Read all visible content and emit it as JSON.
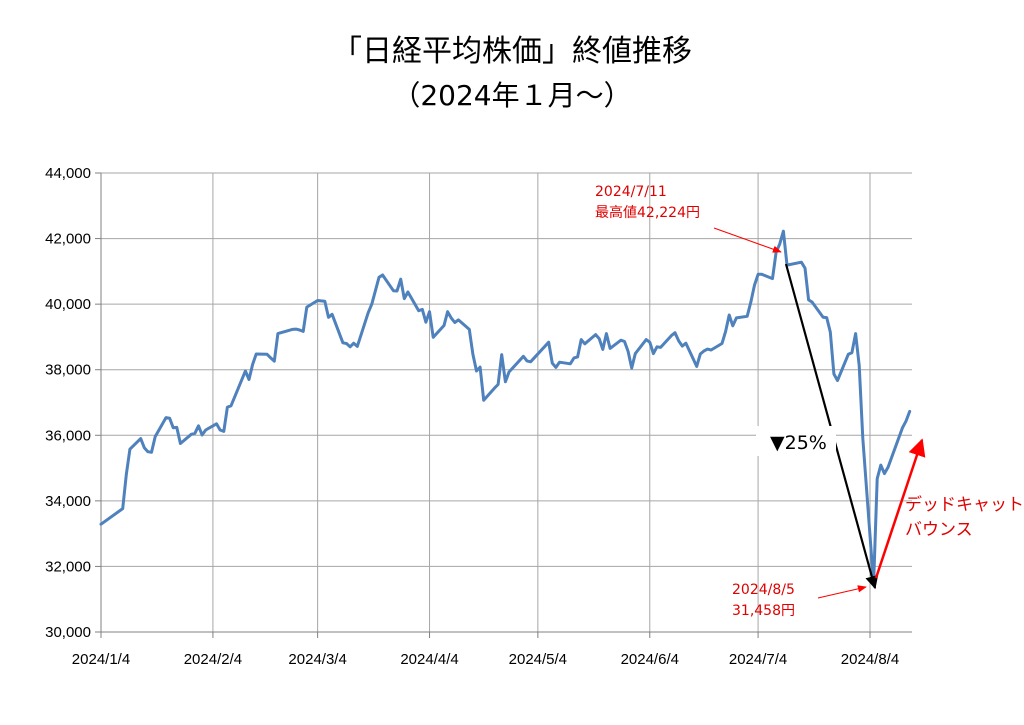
{
  "chart_data": {
    "type": "line",
    "title": "「日経平均株価」終値推移",
    "subtitle": "（2024年１月～）",
    "ylim": [
      30000,
      44000
    ],
    "yticks": [
      "30,000",
      "32,000",
      "34,000",
      "36,000",
      "38,000",
      "40,000",
      "42,000",
      "44,000"
    ],
    "xticks": [
      "2024/1/4",
      "2024/2/4",
      "2024/3/4",
      "2024/4/4",
      "2024/5/4",
      "2024/6/4",
      "2024/7/4",
      "2024/8/4"
    ],
    "grid": true,
    "series": [
      {
        "color": "#4f81bd",
        "points": [
          [
            "2024-01-04",
            33288
          ],
          [
            "2024-01-10",
            33763
          ],
          [
            "2024-01-11",
            34800
          ],
          [
            "2024-01-12",
            35577
          ],
          [
            "2024-01-15",
            35900
          ],
          [
            "2024-01-16",
            35620
          ],
          [
            "2024-01-17",
            35500
          ],
          [
            "2024-01-18",
            35480
          ],
          [
            "2024-01-19",
            35960
          ],
          [
            "2024-01-22",
            36540
          ],
          [
            "2024-01-23",
            36520
          ],
          [
            "2024-01-24",
            36230
          ],
          [
            "2024-01-25",
            36240
          ],
          [
            "2024-01-26",
            35750
          ],
          [
            "2024-01-29",
            36030
          ],
          [
            "2024-01-30",
            36060
          ],
          [
            "2024-01-31",
            36290
          ],
          [
            "2024-02-01",
            36010
          ],
          [
            "2024-02-02",
            36160
          ],
          [
            "2024-02-05",
            36350
          ],
          [
            "2024-02-06",
            36160
          ],
          [
            "2024-02-07",
            36120
          ],
          [
            "2024-02-08",
            36860
          ],
          [
            "2024-02-09",
            36900
          ],
          [
            "2024-02-13",
            37960
          ],
          [
            "2024-02-14",
            37700
          ],
          [
            "2024-02-15",
            38160
          ],
          [
            "2024-02-16",
            38480
          ],
          [
            "2024-02-19",
            38470
          ],
          [
            "2024-02-20",
            38360
          ],
          [
            "2024-02-21",
            38260
          ],
          [
            "2024-02-22",
            39100
          ],
          [
            "2024-02-26",
            39230
          ],
          [
            "2024-02-27",
            39240
          ],
          [
            "2024-02-28",
            39210
          ],
          [
            "2024-02-29",
            39170
          ],
          [
            "2024-03-01",
            39910
          ],
          [
            "2024-03-04",
            40110
          ],
          [
            "2024-03-05",
            40100
          ],
          [
            "2024-03-06",
            40090
          ],
          [
            "2024-03-07",
            39600
          ],
          [
            "2024-03-08",
            39690
          ],
          [
            "2024-03-11",
            38820
          ],
          [
            "2024-03-12",
            38800
          ],
          [
            "2024-03-13",
            38700
          ],
          [
            "2024-03-14",
            38810
          ],
          [
            "2024-03-15",
            38710
          ],
          [
            "2024-03-18",
            39740
          ],
          [
            "2024-03-19",
            40000
          ],
          [
            "2024-03-21",
            40820
          ],
          [
            "2024-03-22",
            40890
          ],
          [
            "2024-03-25",
            40410
          ],
          [
            "2024-03-26",
            40400
          ],
          [
            "2024-03-27",
            40760
          ],
          [
            "2024-03-28",
            40170
          ],
          [
            "2024-03-29",
            40370
          ],
          [
            "2024-04-01",
            39800
          ],
          [
            "2024-04-02",
            39840
          ],
          [
            "2024-04-03",
            39450
          ],
          [
            "2024-04-04",
            39770
          ],
          [
            "2024-04-05",
            38990
          ],
          [
            "2024-04-08",
            39350
          ],
          [
            "2024-04-09",
            39770
          ],
          [
            "2024-04-10",
            39580
          ],
          [
            "2024-04-11",
            39440
          ],
          [
            "2024-04-12",
            39520
          ],
          [
            "2024-04-15",
            39230
          ],
          [
            "2024-04-16",
            38470
          ],
          [
            "2024-04-17",
            37960
          ],
          [
            "2024-04-18",
            38080
          ],
          [
            "2024-04-19",
            37070
          ],
          [
            "2024-04-22",
            37440
          ],
          [
            "2024-04-23",
            37550
          ],
          [
            "2024-04-24",
            38460
          ],
          [
            "2024-04-25",
            37630
          ],
          [
            "2024-04-26",
            37930
          ],
          [
            "2024-04-30",
            38410
          ],
          [
            "2024-05-01",
            38270
          ],
          [
            "2024-05-02",
            38240
          ],
          [
            "2024-05-07",
            38840
          ],
          [
            "2024-05-08",
            38200
          ],
          [
            "2024-05-09",
            38070
          ],
          [
            "2024-05-10",
            38230
          ],
          [
            "2024-05-13",
            38180
          ],
          [
            "2024-05-14",
            38360
          ],
          [
            "2024-05-15",
            38390
          ],
          [
            "2024-05-16",
            38920
          ],
          [
            "2024-05-17",
            38790
          ],
          [
            "2024-05-20",
            39070
          ],
          [
            "2024-05-21",
            38950
          ],
          [
            "2024-05-22",
            38620
          ],
          [
            "2024-05-23",
            39100
          ],
          [
            "2024-05-24",
            38650
          ],
          [
            "2024-05-27",
            38900
          ],
          [
            "2024-05-28",
            38860
          ],
          [
            "2024-05-29",
            38560
          ],
          [
            "2024-05-30",
            38050
          ],
          [
            "2024-05-31",
            38490
          ],
          [
            "2024-06-03",
            38920
          ],
          [
            "2024-06-04",
            38840
          ],
          [
            "2024-06-05",
            38490
          ],
          [
            "2024-06-06",
            38700
          ],
          [
            "2024-06-07",
            38680
          ],
          [
            "2024-06-10",
            39040
          ],
          [
            "2024-06-11",
            39130
          ],
          [
            "2024-06-12",
            38880
          ],
          [
            "2024-06-13",
            38720
          ],
          [
            "2024-06-14",
            38810
          ],
          [
            "2024-06-17",
            38100
          ],
          [
            "2024-06-18",
            38480
          ],
          [
            "2024-06-19",
            38570
          ],
          [
            "2024-06-20",
            38630
          ],
          [
            "2024-06-21",
            38600
          ],
          [
            "2024-06-24",
            38800
          ],
          [
            "2024-06-25",
            39170
          ],
          [
            "2024-06-26",
            39670
          ],
          [
            "2024-06-27",
            39340
          ],
          [
            "2024-06-28",
            39580
          ],
          [
            "2024-07-01",
            39630
          ],
          [
            "2024-07-02",
            40070
          ],
          [
            "2024-07-03",
            40580
          ],
          [
            "2024-07-04",
            40910
          ],
          [
            "2024-07-05",
            40910
          ],
          [
            "2024-07-08",
            40780
          ],
          [
            "2024-07-09",
            41580
          ],
          [
            "2024-07-10",
            41830
          ],
          [
            "2024-07-11",
            42224
          ],
          [
            "2024-07-12",
            41190
          ],
          [
            "2024-07-16",
            41280
          ],
          [
            "2024-07-17",
            41100
          ],
          [
            "2024-07-18",
            40130
          ],
          [
            "2024-07-19",
            40060
          ],
          [
            "2024-07-22",
            39600
          ],
          [
            "2024-07-23",
            39590
          ],
          [
            "2024-07-24",
            39150
          ],
          [
            "2024-07-25",
            37870
          ],
          [
            "2024-07-26",
            37670
          ],
          [
            "2024-07-29",
            38470
          ],
          [
            "2024-07-30",
            38520
          ],
          [
            "2024-07-31",
            39100
          ],
          [
            "2024-08-01",
            38130
          ],
          [
            "2024-08-02",
            35910
          ],
          [
            "2024-08-05",
            31458
          ],
          [
            "2024-08-06",
            34680
          ],
          [
            "2024-08-07",
            35090
          ],
          [
            "2024-08-08",
            34830
          ],
          [
            "2024-08-09",
            35030
          ],
          [
            "2024-08-13",
            36230
          ],
          [
            "2024-08-14",
            36440
          ],
          [
            "2024-08-15",
            36730
          ]
        ]
      }
    ],
    "annotations": {
      "peak_date": "2024/7/11",
      "peak_text": "最高値42,224円",
      "trough_date": "2024/8/5",
      "trough_text": "31,458円",
      "drop_text": "▼25%",
      "bounce_line1": "デッドキャット",
      "bounce_line2": "バウンス"
    }
  }
}
